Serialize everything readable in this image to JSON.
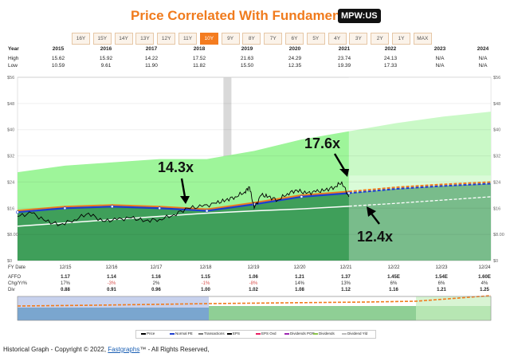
{
  "header": {
    "title": "Price Correlated With Fundamentals",
    "ticker": "MPW:US"
  },
  "periods": {
    "items": [
      "16Y",
      "15Y",
      "14Y",
      "13Y",
      "12Y",
      "11Y",
      "10Y",
      "9Y",
      "8Y",
      "7Y",
      "6Y",
      "5Y",
      "4Y",
      "3Y",
      "2Y",
      "1Y",
      "MAX"
    ],
    "active": "10Y"
  },
  "year_table": {
    "year_label": "Year",
    "high_label": "High",
    "low_label": "Low",
    "years": [
      "2015",
      "2016",
      "2017",
      "2018",
      "2019",
      "2020",
      "2021",
      "2022",
      "2023",
      "2024"
    ],
    "high": [
      "15.62",
      "15.92",
      "14.22",
      "17.52",
      "21.63",
      "24.29",
      "23.74",
      "24.13",
      "N/A",
      "N/A"
    ],
    "low": [
      "10.59",
      "9.61",
      "11.90",
      "11.82",
      "15.50",
      "12.35",
      "19.39",
      "17.33",
      "N/A",
      "N/A"
    ]
  },
  "bottom_table": {
    "labels": {
      "date": "FY Date",
      "affo": "AFFO",
      "chg": "Chg/Yr%",
      "div": "Div"
    },
    "dates": [
      "12/15",
      "12/16",
      "12/17",
      "12/18",
      "12/19",
      "12/20",
      "12/21",
      "12/22",
      "12/23",
      "12/24"
    ],
    "affo": [
      "1.17",
      "1.14",
      "1.16",
      "1.15",
      "1.06",
      "1.21",
      "1.37",
      "1.45E",
      "1.54E",
      "1.60E"
    ],
    "chg": [
      "17%",
      "-3%",
      "2%",
      "-1%",
      "-8%",
      "14%",
      "13%",
      "6%",
      "6%",
      "4%"
    ],
    "div": [
      "0.88",
      "0.91",
      "0.96",
      "1.00",
      "1.02",
      "1.08",
      "1.12",
      "1.16",
      "1.21",
      "1.25"
    ]
  },
  "legend": {
    "items": [
      "Price",
      "Normal PE",
      "Transactions",
      "EPS",
      "EPS Ovd",
      "Dividends POR",
      "Dividends",
      "Dividend Yld"
    ]
  },
  "annotations": [
    "14.3x",
    "17.6x",
    "12.4x"
  ],
  "footer": {
    "prefix": "Historical Graph - Copyright © 2022,",
    "brand": "Fastgraphs",
    "suffix": "- All Rights Reserved,"
  },
  "colors": {
    "accent": "#f07b1d",
    "price": "#000000",
    "normal_pe": "#1f3fcf",
    "dividend_por": "#ffffff",
    "fair_value": "#2e7d32",
    "projection": "#c8f0c0"
  },
  "chart_data": {
    "type": "line",
    "title": "Price Correlated With Fundamentals",
    "xlabel": "FY Date",
    "ylabel": "",
    "y_ticks": [
      "$56",
      "$48",
      "$40",
      "$32",
      "$24",
      "$16",
      "$8.00",
      "$0"
    ],
    "ylim": [
      0,
      56
    ],
    "xlim": [
      2015,
      2025
    ],
    "series": [
      {
        "name": "Price",
        "x": [
          2015.0,
          2015.3,
          2015.6,
          2015.9,
          2016.2,
          2016.5,
          2016.8,
          2017.1,
          2017.4,
          2017.7,
          2018.0,
          2018.3,
          2018.6,
          2018.9,
          2019.2,
          2019.4,
          2019.6,
          2019.8,
          2019.9,
          2020.0,
          2020.15,
          2020.3,
          2020.5,
          2020.7,
          2020.9,
          2021.1,
          2021.3,
          2021.5,
          2021.7,
          2021.85,
          2022.0
        ],
        "values": [
          13.5,
          14.5,
          12.0,
          11.0,
          12.5,
          14.5,
          12.0,
          12.5,
          13.0,
          12.2,
          12.6,
          14.0,
          16.0,
          16.5,
          17.5,
          18.5,
          19.5,
          21.0,
          22.5,
          16.0,
          20.0,
          19.5,
          18.5,
          20.5,
          21.5,
          20.5,
          21.0,
          21.5,
          22.5,
          24.0,
          19.5
        ]
      },
      {
        "name": "Normal PE",
        "x": [
          2015,
          2016,
          2017,
          2018,
          2019,
          2020,
          2021,
          2022,
          2023,
          2024,
          2025
        ],
        "values": [
          14.8,
          16.0,
          16.5,
          16.0,
          15.2,
          17.2,
          19.5,
          20.6,
          21.9,
          22.8,
          23.5
        ]
      },
      {
        "name": "Dividends POR",
        "x": [
          2015,
          2016,
          2017,
          2018,
          2019,
          2020,
          2021,
          2022,
          2023,
          2024,
          2025
        ],
        "values": [
          10.5,
          11.5,
          12.5,
          13.5,
          14.5,
          15.2,
          15.8,
          16.6,
          17.5,
          18.5,
          19.5
        ]
      },
      {
        "name": "Fair Value Upper",
        "x": [
          2015,
          2016,
          2017,
          2018,
          2019,
          2020,
          2021,
          2022,
          2023,
          2024,
          2025
        ],
        "values": [
          27.0,
          29.0,
          30.0,
          31.0,
          31.0,
          33.5,
          37.0,
          39.5,
          42.0,
          44.0,
          45.5
        ]
      }
    ],
    "annotations": [
      {
        "text": "14.3x",
        "x": 2018.1,
        "y": 16.0
      },
      {
        "text": "17.6x",
        "x": 2021.75,
        "y": 24.0
      },
      {
        "text": "12.4x",
        "x": 2022.1,
        "y": 19.5
      }
    ]
  }
}
